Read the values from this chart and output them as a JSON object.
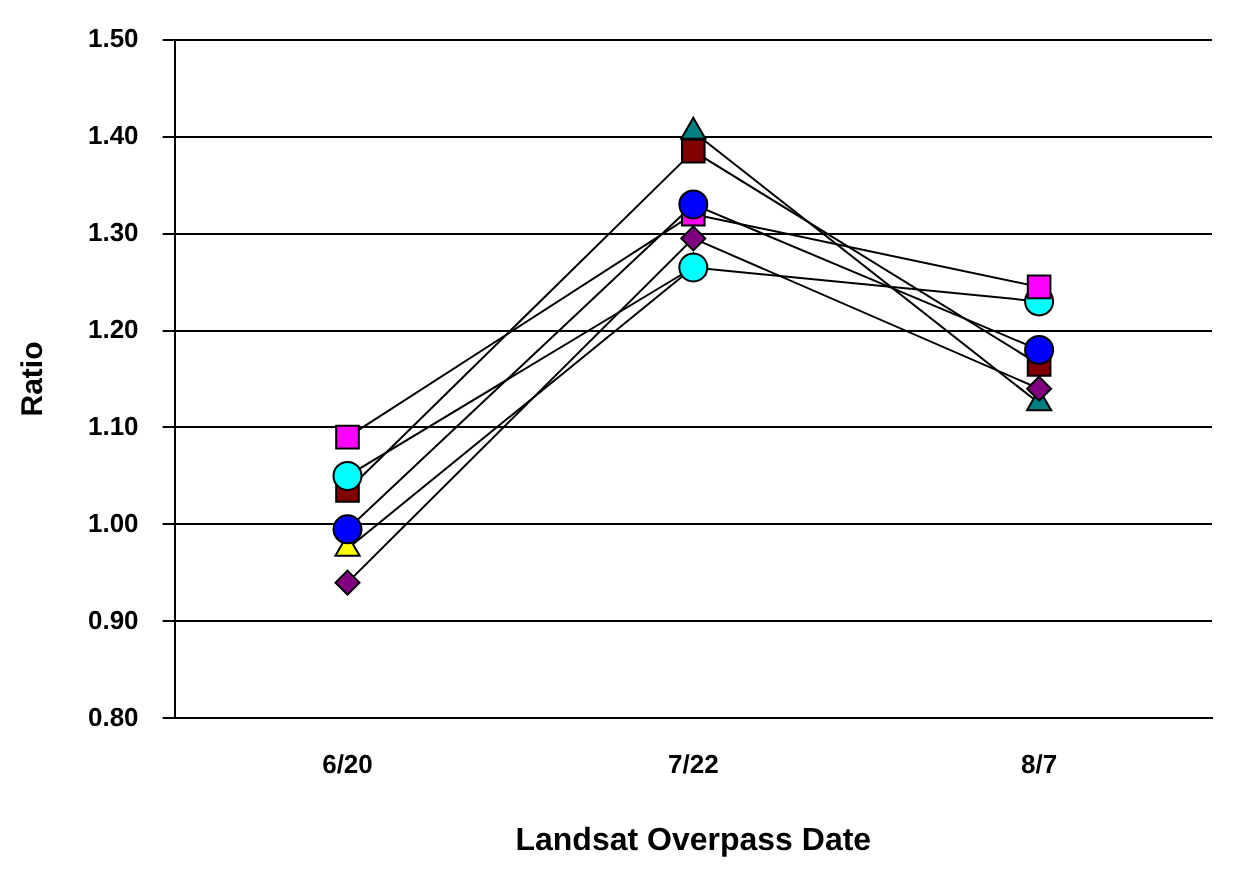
{
  "chart_data": {
    "type": "line",
    "xlabel": "Landsat Overpass Date",
    "ylabel": "Ratio",
    "categories": [
      "6/20",
      "7/22",
      "8/7"
    ],
    "series": [
      {
        "color": "#0000ff",
        "marker": "circle",
        "values": [
          0.995,
          1.33,
          1.18
        ]
      },
      {
        "color": "#ff00ff",
        "marker": "square",
        "values": [
          1.09,
          1.32,
          1.245
        ]
      },
      {
        "color": "#00ffff",
        "marker": "circle",
        "values": [
          1.05,
          1.265,
          1.23
        ]
      },
      {
        "color": "#800000",
        "marker": "square",
        "values": [
          1.035,
          1.385,
          1.165
        ]
      },
      {
        "color": "#ffff00",
        "marker": "triangle",
        "values": [
          0.975,
          1.265,
          null
        ]
      },
      {
        "color": "#800080",
        "marker": "diamond",
        "values": [
          0.94,
          1.295,
          1.14
        ]
      },
      {
        "color": "#008080",
        "marker": "triangle",
        "values": [
          null,
          1.405,
          1.125
        ]
      }
    ],
    "ylim": [
      0.8,
      1.5
    ],
    "yticks": [
      {
        "value": 0.8,
        "label": "0.80"
      },
      {
        "value": 0.9,
        "label": "0.90"
      },
      {
        "value": 1.0,
        "label": "1.00"
      },
      {
        "value": 1.1,
        "label": "1.10"
      },
      {
        "value": 1.2,
        "label": "1.20"
      },
      {
        "value": 1.3,
        "label": "1.30"
      },
      {
        "value": 1.4,
        "label": "1.40"
      },
      {
        "value": 1.5,
        "label": "1.50"
      }
    ],
    "grid": "y",
    "legend": false
  }
}
